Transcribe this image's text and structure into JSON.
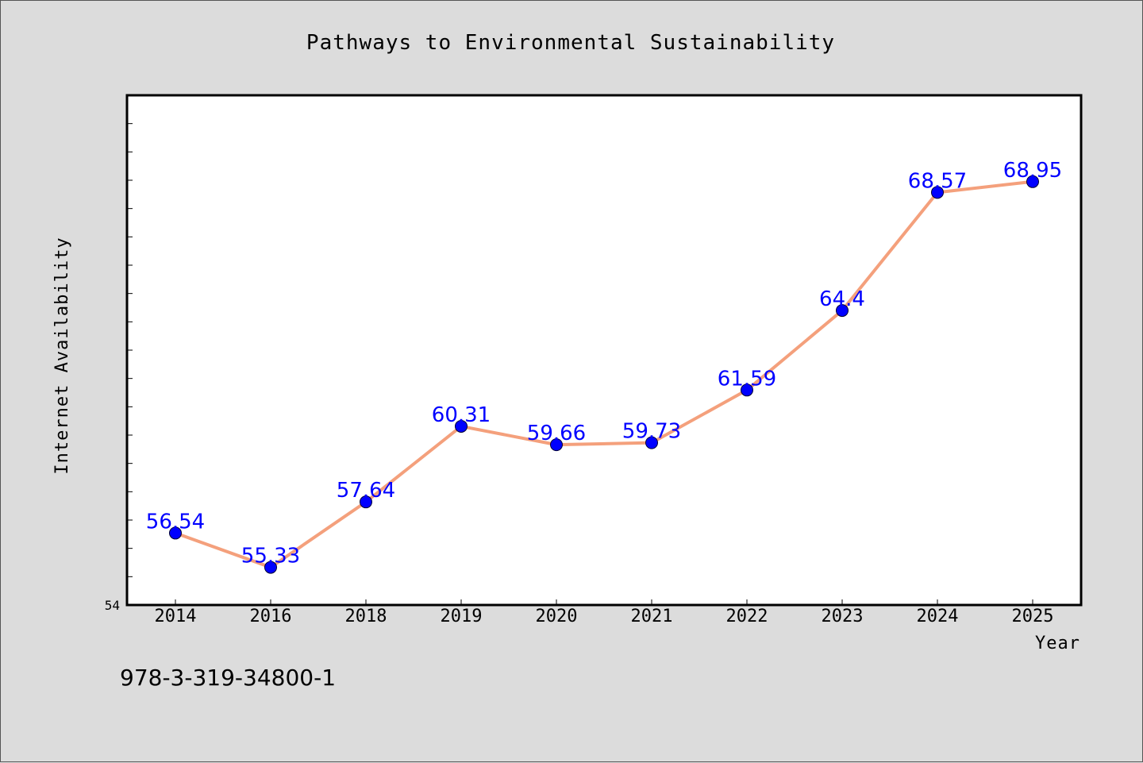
{
  "footnote": "978-3-319-34800-1",
  "chart_data": {
    "type": "line",
    "title": "Pathways to Environmental Sustainability",
    "xlabel": "Year",
    "ylabel": "Internet Availability",
    "ylim_min_label": "54",
    "categories": [
      "2014",
      "2016",
      "2018",
      "2019",
      "2020",
      "2021",
      "2022",
      "2023",
      "2024",
      "2025"
    ],
    "values": [
      56.54,
      55.33,
      57.64,
      60.31,
      59.66,
      59.73,
      61.59,
      64.4,
      68.57,
      68.95
    ],
    "data_labels": [
      "56.54",
      "55.33",
      "57.64",
      "60.31",
      "59.66",
      "59.73",
      "61.59",
      "64.4",
      "68.57",
      "68.95"
    ],
    "ylim": [
      54,
      72
    ],
    "grid": false,
    "line_color": "#f4a07c",
    "marker_color": "#0000ff",
    "label_color": "#0000ff"
  }
}
